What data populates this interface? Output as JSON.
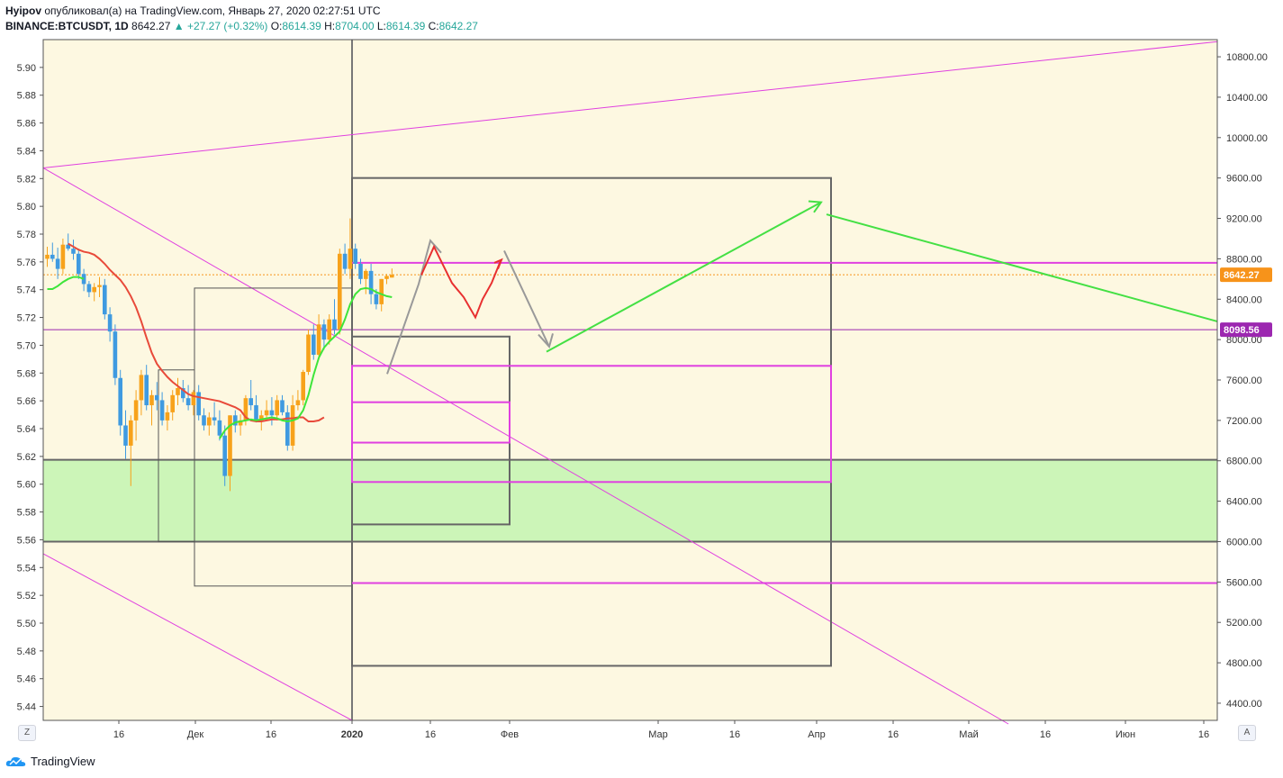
{
  "header": {
    "author": "Hyipov",
    "published_text": "опубликовал(а) на TradingView.com, Январь 27, 2020 02:27:51 UTC",
    "symbol": "BINANCE:BTCUSDT, 1D",
    "last": "8642.27",
    "change": "▲ +27.27 (+0.32%)",
    "o_label": "O:",
    "o": "8614.39",
    "h_label": "H:",
    "h": "8704.00",
    "l_label": "L:",
    "l": "8614.39",
    "c_label": "C:",
    "c": "8642.27"
  },
  "buttons": {
    "z": "Z",
    "a": "A"
  },
  "brand": {
    "name": "TradingView"
  },
  "colors": {
    "background": "#fdf8e1",
    "bull": "#f7a21b",
    "bear": "#3f9ae0",
    "ema_down": "#e84a3a",
    "ema_up": "#3ee53a",
    "magenta": "#e040e0",
    "green_zone": "#ccf5b8",
    "price_tag": "#f7931a",
    "level_tag": "#9c27b0"
  },
  "chart_data": {
    "type": "candlestick",
    "left_axis": {
      "ticks": [
        "5.90",
        "5.88",
        "5.86",
        "5.84",
        "5.82",
        "5.80",
        "5.78",
        "5.76",
        "5.74",
        "5.72",
        "5.70",
        "5.68",
        "5.66",
        "5.64",
        "5.62",
        "5.60",
        "5.58",
        "5.56",
        "5.54",
        "5.52",
        "5.50",
        "5.48",
        "5.46",
        "5.44"
      ],
      "range": [
        5.43,
        5.92
      ]
    },
    "right_axis": {
      "ticks": [
        "10800.00",
        "10400.00",
        "10000.00",
        "9600.00",
        "9200.00",
        "8800.00",
        "8400.00",
        "8000.00",
        "7600.00",
        "7200.00",
        "6800.00",
        "6400.00",
        "6000.00",
        "5600.00",
        "5200.00",
        "4800.00",
        "4400.00"
      ],
      "range": [
        4230,
        10970
      ]
    },
    "x_labels": [
      "16",
      "Дек",
      "16",
      "2020",
      "16",
      "Фев",
      "Мар",
      "16",
      "Апр",
      "16",
      "Май",
      "16",
      "Июн",
      "16"
    ],
    "price_tags": [
      {
        "label": "8642.27",
        "value": 8642.27,
        "color": "#f7931a"
      },
      {
        "label": "8098.56",
        "value": 8098.56,
        "color": "#9c27b0"
      }
    ],
    "candles": [
      [
        8800,
        8920,
        8720,
        8840
      ],
      [
        8840,
        8960,
        8770,
        8800
      ],
      [
        8800,
        8910,
        8600,
        8700
      ],
      [
        8700,
        9000,
        8650,
        8940
      ],
      [
        8940,
        9050,
        8880,
        8900
      ],
      [
        8900,
        8990,
        8790,
        8850
      ],
      [
        8850,
        8900,
        8600,
        8650
      ],
      [
        8650,
        8700,
        8480,
        8550
      ],
      [
        8550,
        8580,
        8420,
        8470
      ],
      [
        8470,
        8560,
        8380,
        8520
      ],
      [
        8520,
        8620,
        8420,
        8540
      ],
      [
        8540,
        8600,
        8200,
        8250
      ],
      [
        8250,
        8320,
        7980,
        8080
      ],
      [
        8080,
        8150,
        7550,
        7620
      ],
      [
        7620,
        7700,
        7050,
        7150
      ],
      [
        7150,
        7300,
        6820,
        6950
      ],
      [
        6950,
        7250,
        6550,
        7200
      ],
      [
        7200,
        7500,
        7000,
        7400
      ],
      [
        7400,
        7700,
        7250,
        7650
      ],
      [
        7650,
        7750,
        7300,
        7350
      ],
      [
        7350,
        7500,
        7150,
        7450
      ],
      [
        7450,
        7580,
        7300,
        7400
      ],
      [
        7400,
        7480,
        7150,
        7200
      ],
      [
        7200,
        7350,
        7100,
        7280
      ],
      [
        7280,
        7500,
        7200,
        7450
      ],
      [
        7450,
        7620,
        7350,
        7520
      ],
      [
        7520,
        7600,
        7380,
        7420
      ],
      [
        7420,
        7550,
        7300,
        7350
      ],
      [
        7350,
        7500,
        7250,
        7480
      ],
      [
        7480,
        7550,
        7200,
        7250
      ],
      [
        7250,
        7320,
        7100,
        7150
      ],
      [
        7150,
        7280,
        7050,
        7230
      ],
      [
        7230,
        7380,
        7150,
        7200
      ],
      [
        7200,
        7300,
        7000,
        7050
      ],
      [
        7050,
        7150,
        6550,
        6650
      ],
      [
        6650,
        7250,
        6500,
        7250
      ],
      [
        7250,
        7300,
        7080,
        7150
      ],
      [
        7150,
        7260,
        7050,
        7200
      ],
      [
        7200,
        7450,
        7150,
        7420
      ],
      [
        7420,
        7600,
        7300,
        7350
      ],
      [
        7350,
        7450,
        7180,
        7200
      ],
      [
        7200,
        7300,
        7100,
        7250
      ],
      [
        7250,
        7400,
        7200,
        7300
      ],
      [
        7300,
        7430,
        7150,
        7250
      ],
      [
        7250,
        7450,
        7200,
        7400
      ],
      [
        7400,
        7450,
        7250,
        7280
      ],
      [
        7280,
        7350,
        6900,
        6950
      ],
      [
        6950,
        7450,
        6900,
        7350
      ],
      [
        7350,
        7500,
        7300,
        7400
      ],
      [
        7400,
        7700,
        7350,
        7680
      ],
      [
        7680,
        8100,
        7650,
        8050
      ],
      [
        8050,
        8150,
        7800,
        7850
      ],
      [
        7850,
        8250,
        7800,
        8150
      ],
      [
        8150,
        8200,
        7900,
        8000
      ],
      [
        8000,
        8250,
        7950,
        8200
      ],
      [
        8200,
        8400,
        8050,
        8100
      ],
      [
        8100,
        8900,
        8050,
        8850
      ],
      [
        8850,
        8950,
        8650,
        8700
      ],
      [
        8700,
        9200,
        8600,
        8900
      ],
      [
        8900,
        8950,
        8700,
        8750
      ],
      [
        8750,
        8800,
        8550,
        8600
      ],
      [
        8600,
        8700,
        8450,
        8680
      ],
      [
        8680,
        8750,
        8350,
        8450
      ],
      [
        8450,
        8500,
        8300,
        8350
      ],
      [
        8350,
        8600,
        8280,
        8600
      ],
      [
        8600,
        8650,
        8550,
        8630
      ],
      [
        8614,
        8704,
        8614,
        8642
      ]
    ],
    "ema_red": [
      8950,
      8920,
      8890,
      8870,
      8860,
      8840,
      8800,
      8750,
      8690,
      8640,
      8590,
      8520,
      8430,
      8320,
      8180,
      8020,
      7870,
      7760,
      7690,
      7630,
      7580,
      7540,
      7500,
      7460,
      7440,
      7430,
      7420,
      7410,
      7400,
      7390,
      7370,
      7350,
      7330,
      7300,
      7230,
      7200,
      7190,
      7190,
      7200,
      7210,
      7210,
      7210,
      7220,
      7220,
      7230,
      7230,
      7190,
      7190,
      7200,
      7230
    ],
    "ema_green_a": [
      8500,
      8500,
      8530,
      8570,
      8600,
      8620,
      8620,
      8600
    ],
    "ema_green_b": [
      7020,
      7100,
      7150,
      7180,
      7190,
      7200,
      7210,
      7200,
      7210,
      7220,
      7230,
      7220,
      7200,
      7190,
      7200,
      7220,
      7300,
      7450,
      7650,
      7820,
      7920,
      7980,
      8030,
      8080,
      8200,
      8350,
      8450,
      8500,
      8510,
      8500,
      8470,
      8450,
      8430,
      8420
    ],
    "lines": [
      {
        "name": "upper-trend",
        "from": [
          "-18",
          9700
        ],
        "to": [
          "+115",
          10950
        ],
        "color": "#e040e0"
      },
      {
        "name": "lower-trend",
        "from": [
          "-18",
          9700
        ],
        "to": [
          "+78",
          4250
        ],
        "color": "#e040e0"
      }
    ],
    "zones": [
      {
        "name": "support-zone",
        "from": 6000,
        "to": 6810
      }
    ],
    "levels": [
      8800,
      7740,
      7440,
      7000,
      6580,
      5600
    ]
  }
}
